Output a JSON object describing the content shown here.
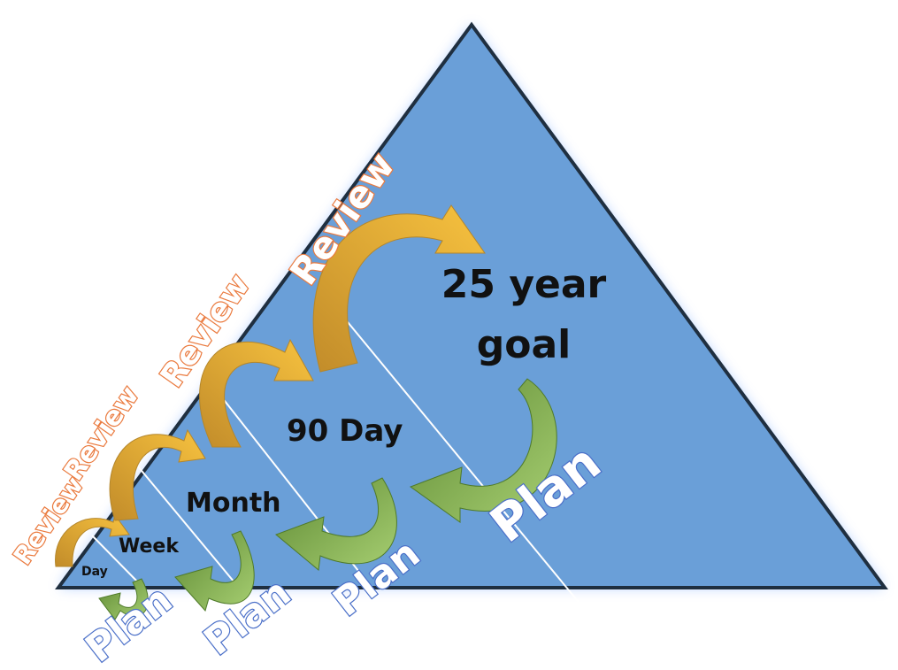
{
  "levels": {
    "day": "Day",
    "week": "Week",
    "month": "Month",
    "ninety_day": "90 Day",
    "goal_line1": "25 year",
    "goal_line2": "goal"
  },
  "review_label": "Review",
  "plan_label": "Plan",
  "colors": {
    "triangle_fill": "#6a9fd8",
    "triangle_stroke": "#1f2f40",
    "glow": "#a8c8ff",
    "review_arrow": "#f4bb3a",
    "review_arrow_dark": "#c99a2c",
    "plan_arrow": "#6f9a3e",
    "plan_arrow_light": "#9cc468",
    "review_text_stroke": "#ea7a3e",
    "plan_text_stroke": "#4a6fc8"
  }
}
